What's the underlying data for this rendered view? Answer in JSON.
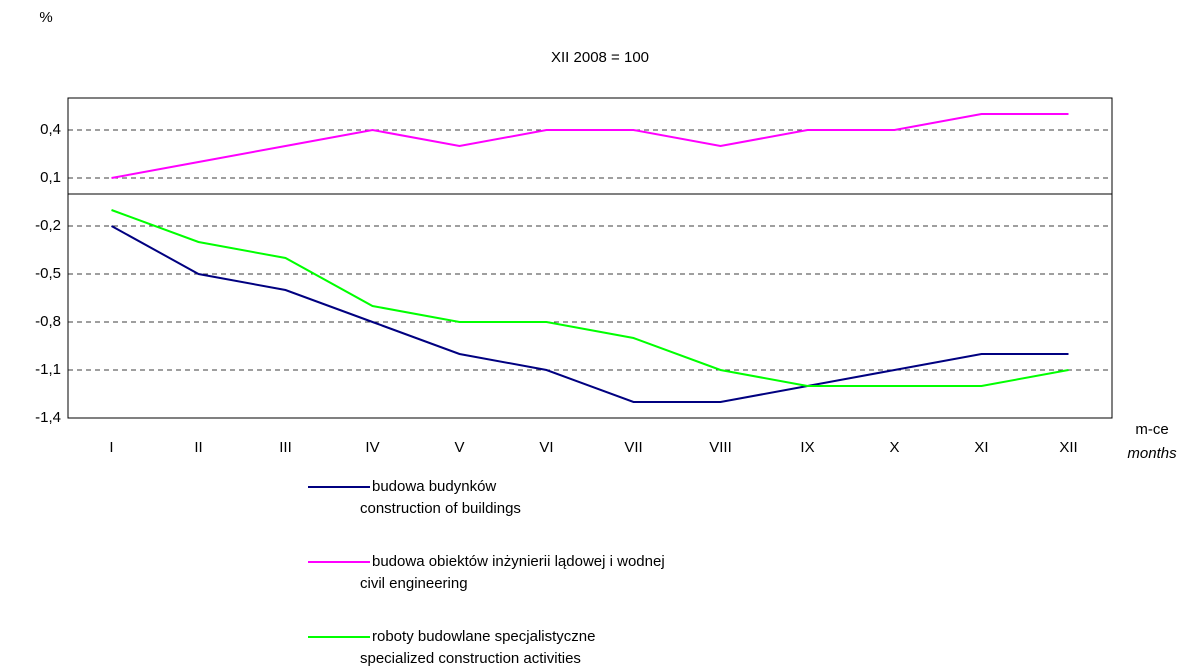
{
  "chart_data": {
    "type": "line",
    "title": "XII 2008 = 100",
    "y_unit": "%",
    "x_label": "m-ce",
    "x_label_en": "months",
    "categories": [
      "I",
      "II",
      "III",
      "IV",
      "V",
      "VI",
      "VII",
      "VIII",
      "IX",
      "X",
      "XI",
      "XII"
    ],
    "ylim": [
      -1.4,
      0.6
    ],
    "yticks": [
      {
        "value": 0.4,
        "label": "0,4"
      },
      {
        "value": 0.1,
        "label": "0,1"
      },
      {
        "value": -0.2,
        "label": "-0,2"
      },
      {
        "value": -0.5,
        "label": "-0,5"
      },
      {
        "value": -0.8,
        "label": "-0,8"
      },
      {
        "value": -1.1,
        "label": "-1,1"
      },
      {
        "value": -1.4,
        "label": "-1,4"
      }
    ],
    "grid": true,
    "series": [
      {
        "name": "budowa budynków",
        "name_en": "construction of buildings",
        "color": "#000080",
        "values": [
          -0.2,
          -0.5,
          -0.6,
          -0.8,
          -1.0,
          -1.1,
          -1.3,
          -1.3,
          -1.2,
          -1.1,
          -1.0,
          -1.0
        ]
      },
      {
        "name": "budowa obiektów inżynierii lądowej i wodnej",
        "name_en": "civil engineering",
        "color": "#ff00ff",
        "values": [
          0.1,
          0.2,
          0.3,
          0.4,
          0.3,
          0.4,
          0.4,
          0.3,
          0.4,
          0.4,
          0.5,
          0.5
        ]
      },
      {
        "name": "roboty budowlane specjalistyczne",
        "name_en": "specialized construction activities",
        "color": "#00ff00",
        "values": [
          -0.1,
          -0.3,
          -0.4,
          -0.7,
          -0.8,
          -0.8,
          -0.9,
          -1.1,
          -1.2,
          -1.2,
          -1.2,
          -1.1
        ]
      }
    ]
  }
}
